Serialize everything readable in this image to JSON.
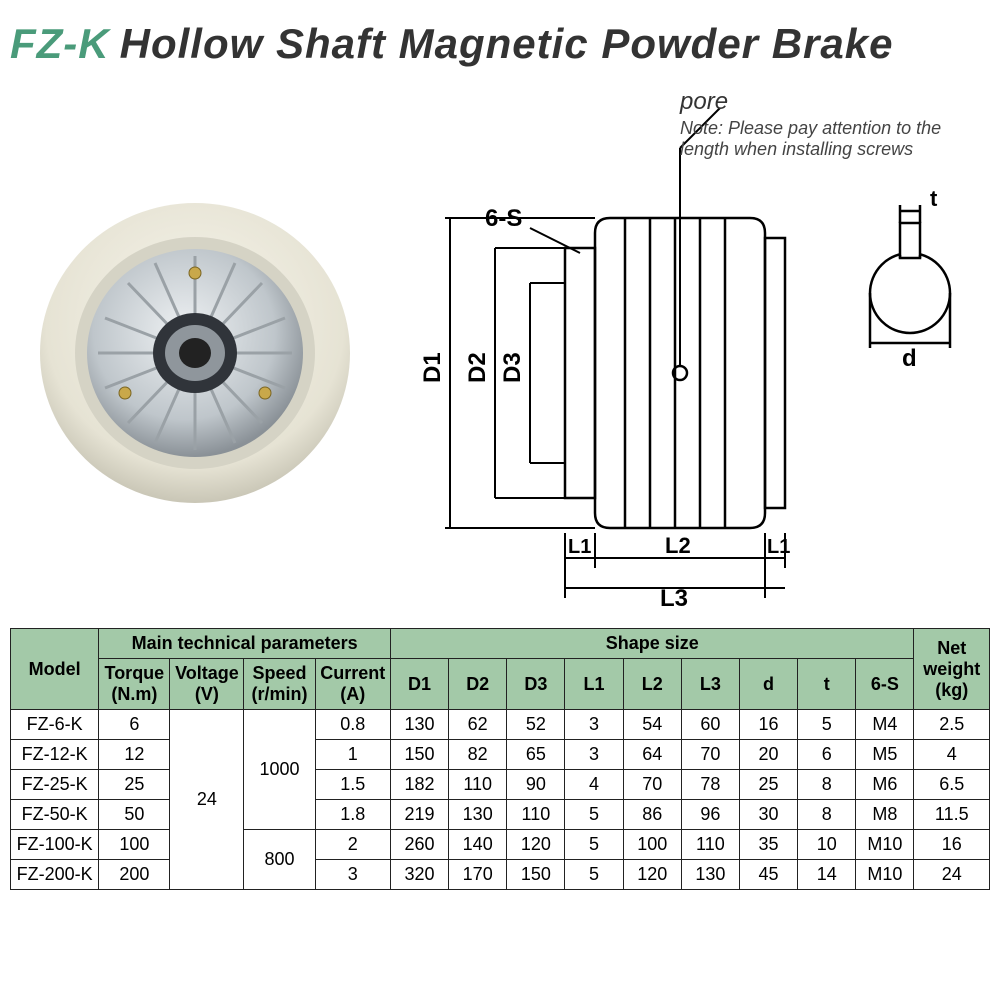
{
  "title": {
    "prefix": "FZ-K",
    "main": "Hollow Shaft Magnetic Powder Brake"
  },
  "diagram": {
    "pore_label": "pore",
    "note": "Note: Please pay attention to the length when installing screws",
    "labels": {
      "d1": "D1",
      "d2": "D2",
      "d3": "D3",
      "l1": "L1",
      "l2": "L2",
      "l3": "L3",
      "sixS": "6-S",
      "t": "t",
      "d": "d"
    }
  },
  "table": {
    "headers": {
      "model": "Model",
      "main_params": "Main technical parameters",
      "shape_size": "Shape size",
      "net_weight": "Net weight (kg)",
      "torque": "Torque (N.m)",
      "voltage": "Voltage (V)",
      "speed": "Speed (r/min)",
      "current": "Current (A)",
      "D1": "D1",
      "D2": "D2",
      "D3": "D3",
      "L1": "L1",
      "L2": "L2",
      "L3": "L3",
      "d": "d",
      "t": "t",
      "sixS": "6-S"
    },
    "voltage_shared": "24",
    "speed_group_a": "1000",
    "speed_group_b": "800",
    "rows": [
      {
        "model": "FZ-6-K",
        "torque": "6",
        "current": "0.8",
        "D1": "130",
        "D2": "62",
        "D3": "52",
        "L1": "3",
        "L2": "54",
        "L3": "60",
        "d": "16",
        "t": "5",
        "sixS": "M4",
        "wt": "2.5"
      },
      {
        "model": "FZ-12-K",
        "torque": "12",
        "current": "1",
        "D1": "150",
        "D2": "82",
        "D3": "65",
        "L1": "3",
        "L2": "64",
        "L3": "70",
        "d": "20",
        "t": "6",
        "sixS": "M5",
        "wt": "4"
      },
      {
        "model": "FZ-25-K",
        "torque": "25",
        "current": "1.5",
        "D1": "182",
        "D2": "110",
        "D3": "90",
        "L1": "4",
        "L2": "70",
        "L3": "78",
        "d": "25",
        "t": "8",
        "sixS": "M6",
        "wt": "6.5"
      },
      {
        "model": "FZ-50-K",
        "torque": "50",
        "current": "1.8",
        "D1": "219",
        "D2": "130",
        "D3": "110",
        "L1": "5",
        "L2": "86",
        "L3": "96",
        "d": "30",
        "t": "8",
        "sixS": "M8",
        "wt": "11.5"
      },
      {
        "model": "FZ-100-K",
        "torque": "100",
        "current": "2",
        "D1": "260",
        "D2": "140",
        "D3": "120",
        "L1": "5",
        "L2": "100",
        "L3": "110",
        "d": "35",
        "t": "10",
        "sixS": "M10",
        "wt": "16"
      },
      {
        "model": "FZ-200-K",
        "torque": "200",
        "current": "3",
        "D1": "320",
        "D2": "170",
        "D3": "150",
        "L1": "5",
        "L2": "120",
        "L3": "130",
        "d": "45",
        "t": "14",
        "sixS": "M10",
        "wt": "24"
      }
    ]
  },
  "colors": {
    "header_bg": "#a3c9a8",
    "accent": "#4a9b7a",
    "border": "#222222"
  }
}
